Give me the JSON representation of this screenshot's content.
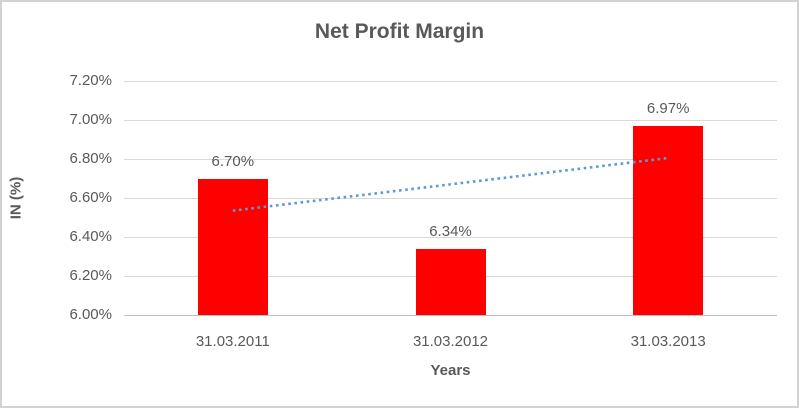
{
  "chart_data": {
    "type": "bar",
    "title": "Net Profit Margin",
    "categories": [
      "31.03.2011",
      "31.03.2012",
      "31.03.2013"
    ],
    "values": [
      6.7,
      6.34,
      6.97
    ],
    "value_labels": [
      "6.70%",
      "6.34%",
      "6.97%"
    ],
    "xlabel": "Years",
    "ylabel": "IN (%)",
    "ylim": [
      6.0,
      7.2
    ],
    "ytick_step": 0.2,
    "yticks": [
      "7.20%",
      "7.00%",
      "6.80%",
      "6.60%",
      "6.40%",
      "6.20%",
      "6.00%"
    ],
    "grid": true,
    "legend": "none",
    "bar_color": "#ff0000",
    "text_color": "#595959",
    "gridline_color": "#d9d9d9",
    "trendline": {
      "type": "linear",
      "style": "dotted",
      "color": "#5b9bd5",
      "start_value": 6.535,
      "end_value": 6.805
    }
  }
}
